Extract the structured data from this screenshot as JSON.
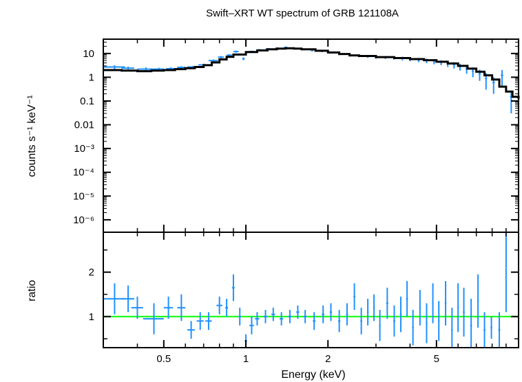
{
  "chart_data": {
    "type": "scatter",
    "title": "Swift–XRT WT spectrum of GRB 121108A",
    "xlabel": "Energy (keV)",
    "xscale": "log",
    "xlim": [
      0.3,
      10
    ],
    "xticks": [
      "0.5",
      "1",
      "2",
      "5"
    ],
    "colors": {
      "data": "#1e90ff",
      "model": "#000000",
      "ratio_line": "#00ff00"
    },
    "panels": [
      {
        "name": "spectrum",
        "ylabel": "counts s⁻¹ keV⁻¹",
        "yscale": "log",
        "ylim": [
          3e-07,
          40
        ],
        "yticks": [
          "10",
          "1",
          "0.1",
          "0.01",
          "10⁻³",
          "10⁻⁴",
          "10⁻⁵",
          "10⁻⁶"
        ],
        "series": [
          {
            "type": "errorbar",
            "points": [
              [
                0.33,
                2.7,
                0.03,
                0.5
              ],
              [
                0.37,
                2.4,
                0.02,
                0.4
              ],
              [
                0.43,
                2.2,
                0.03,
                0.4
              ],
              [
                0.48,
                2.2,
                0.02,
                0.3
              ],
              [
                0.53,
                2.3,
                0.02,
                0.3
              ],
              [
                0.58,
                2.6,
                0.02,
                0.3
              ],
              [
                0.64,
                2.7,
                0.03,
                0.3
              ],
              [
                0.7,
                3.3,
                0.03,
                0.4
              ],
              [
                0.76,
                5.0,
                0.03,
                0.6
              ],
              [
                0.81,
                7.0,
                0.02,
                0.8
              ],
              [
                0.87,
                8.5,
                0.02,
                0.9
              ],
              [
                0.92,
                12.0,
                0.02,
                1.2
              ],
              [
                0.98,
                6.0,
                0.01,
                0.8
              ],
              [
                1.05,
                12.0,
                0.02,
                1.2
              ],
              [
                1.12,
                14.0,
                0.02,
                1.3
              ],
              [
                1.2,
                15.5,
                0.02,
                1.4
              ],
              [
                1.3,
                16.5,
                0.02,
                1.5
              ],
              [
                1.4,
                18.0,
                0.02,
                1.6
              ],
              [
                1.5,
                16.5,
                0.02,
                1.5
              ],
              [
                1.62,
                15.0,
                0.02,
                1.4
              ],
              [
                1.75,
                13.5,
                0.02,
                1.3
              ],
              [
                1.9,
                12.5,
                0.02,
                1.2
              ],
              [
                2.05,
                11.0,
                0.02,
                1.1
              ],
              [
                2.2,
                9.5,
                0.02,
                1.0
              ],
              [
                2.4,
                8.5,
                0.02,
                1.0
              ],
              [
                2.6,
                8.0,
                0.03,
                1.0
              ],
              [
                2.8,
                7.5,
                0.03,
                1.0
              ],
              [
                3.0,
                7.0,
                0.03,
                1.0
              ],
              [
                3.25,
                6.8,
                0.03,
                1.0
              ],
              [
                3.5,
                6.5,
                0.03,
                1.0
              ],
              [
                3.75,
                6.2,
                0.03,
                1.1
              ],
              [
                4.0,
                5.8,
                0.03,
                1.1
              ],
              [
                4.3,
                5.4,
                0.04,
                1.1
              ],
              [
                4.6,
                5.0,
                0.04,
                1.1
              ],
              [
                4.9,
                4.6,
                0.04,
                1.1
              ],
              [
                5.2,
                4.2,
                0.04,
                1.0
              ],
              [
                5.5,
                3.7,
                0.05,
                1.0
              ],
              [
                5.8,
                3.3,
                0.05,
                1.0
              ],
              [
                6.1,
                2.8,
                0.05,
                0.9
              ],
              [
                6.45,
                2.3,
                0.06,
                0.9
              ],
              [
                6.8,
                1.8,
                0.06,
                0.8
              ],
              [
                7.2,
                1.4,
                0.07,
                0.7
              ],
              [
                7.6,
                0.9,
                0.07,
                0.6
              ],
              [
                8.1,
                0.6,
                0.08,
                0.4
              ],
              [
                8.7,
                1.2,
                0.09,
                0.8
              ],
              [
                9.4,
                0.15,
                0.1,
                0.12
              ]
            ]
          },
          {
            "type": "model-step",
            "points": [
              [
                0.3,
                2.0
              ],
              [
                0.35,
                1.9
              ],
              [
                0.4,
                1.8
              ],
              [
                0.45,
                1.9
              ],
              [
                0.5,
                2.0
              ],
              [
                0.55,
                2.2
              ],
              [
                0.6,
                2.4
              ],
              [
                0.65,
                2.7
              ],
              [
                0.7,
                3.2
              ],
              [
                0.75,
                4.2
              ],
              [
                0.8,
                5.6
              ],
              [
                0.85,
                7.2
              ],
              [
                0.9,
                9.0
              ],
              [
                1.0,
                11.5
              ],
              [
                1.1,
                13.5
              ],
              [
                1.2,
                15.0
              ],
              [
                1.3,
                16.0
              ],
              [
                1.4,
                16.5
              ],
              [
                1.5,
                16.0
              ],
              [
                1.6,
                15.0
              ],
              [
                1.8,
                13.0
              ],
              [
                2.0,
                11.0
              ],
              [
                2.2,
                9.5
              ],
              [
                2.4,
                8.3
              ],
              [
                2.6,
                7.8
              ],
              [
                3.0,
                7.0
              ],
              [
                3.5,
                6.4
              ],
              [
                4.0,
                5.8
              ],
              [
                4.5,
                5.2
              ],
              [
                5.0,
                4.5
              ],
              [
                5.5,
                3.8
              ],
              [
                6.0,
                3.0
              ],
              [
                6.5,
                2.3
              ],
              [
                7.0,
                1.7
              ],
              [
                7.5,
                1.2
              ],
              [
                8.0,
                0.8
              ],
              [
                8.5,
                0.4
              ],
              [
                9.0,
                0.25
              ],
              [
                9.5,
                0.15
              ],
              [
                10.0,
                0.12
              ]
            ]
          }
        ]
      },
      {
        "name": "ratio",
        "ylabel": "ratio",
        "ylim": [
          0.3,
          2.9
        ],
        "yticks": [
          "1",
          "2"
        ],
        "reference_line": 1,
        "series": [
          {
            "type": "errorbar",
            "points": [
              [
                0.33,
                1.4,
                0.03,
                0.35
              ],
              [
                0.37,
                1.4,
                0.02,
                0.3
              ],
              [
                0.4,
                1.2,
                0.02,
                0.25
              ],
              [
                0.46,
                0.95,
                0.04,
                0.35
              ],
              [
                0.52,
                1.2,
                0.02,
                0.25
              ],
              [
                0.58,
                1.2,
                0.02,
                0.3
              ],
              [
                0.63,
                0.7,
                0.02,
                0.2
              ],
              [
                0.68,
                0.9,
                0.02,
                0.2
              ],
              [
                0.73,
                0.9,
                0.02,
                0.2
              ],
              [
                0.8,
                1.25,
                0.02,
                0.2
              ],
              [
                0.85,
                1.2,
                0.01,
                0.2
              ],
              [
                0.9,
                1.65,
                0.01,
                0.3
              ],
              [
                0.95,
                1.0,
                0.01,
                0.2
              ],
              [
                1.0,
                0.45,
                0.01,
                0.15
              ],
              [
                1.05,
                0.8,
                0.02,
                0.2
              ],
              [
                1.1,
                0.95,
                0.02,
                0.15
              ],
              [
                1.18,
                1.0,
                0.02,
                0.15
              ],
              [
                1.26,
                1.05,
                0.02,
                0.15
              ],
              [
                1.35,
                0.95,
                0.02,
                0.15
              ],
              [
                1.45,
                1.0,
                0.02,
                0.15
              ],
              [
                1.55,
                1.1,
                0.02,
                0.15
              ],
              [
                1.65,
                1.0,
                0.02,
                0.15
              ],
              [
                1.78,
                0.9,
                0.02,
                0.2
              ],
              [
                1.92,
                1.05,
                0.02,
                0.2
              ],
              [
                2.05,
                1.1,
                0.02,
                0.2
              ],
              [
                2.2,
                0.9,
                0.02,
                0.25
              ],
              [
                2.35,
                1.05,
                0.02,
                0.25
              ],
              [
                2.5,
                1.45,
                0.02,
                0.3
              ],
              [
                2.65,
                0.9,
                0.02,
                0.3
              ],
              [
                2.8,
                1.1,
                0.02,
                0.3
              ],
              [
                2.95,
                1.2,
                0.02,
                0.3
              ],
              [
                3.1,
                0.8,
                0.02,
                0.35
              ],
              [
                3.3,
                1.3,
                0.03,
                0.35
              ],
              [
                3.5,
                0.9,
                0.03,
                0.35
              ],
              [
                3.7,
                1.05,
                0.03,
                0.4
              ],
              [
                3.9,
                1.4,
                0.03,
                0.4
              ],
              [
                4.1,
                0.75,
                0.03,
                0.4
              ],
              [
                4.35,
                1.2,
                0.03,
                0.4
              ],
              [
                4.6,
                0.85,
                0.03,
                0.45
              ],
              [
                4.85,
                1.3,
                0.03,
                0.45
              ],
              [
                5.1,
                0.9,
                0.03,
                0.45
              ],
              [
                5.4,
                1.3,
                0.04,
                0.5
              ],
              [
                5.7,
                0.7,
                0.04,
                0.5
              ],
              [
                6.0,
                1.2,
                0.04,
                0.55
              ],
              [
                6.3,
                1.1,
                0.05,
                0.55
              ],
              [
                6.7,
                0.8,
                0.05,
                0.6
              ],
              [
                7.1,
                1.35,
                0.05,
                0.6
              ],
              [
                7.5,
                0.7,
                0.06,
                0.4
              ],
              [
                7.95,
                0.75,
                0.06,
                0.25
              ],
              [
                8.5,
                0.7,
                0.07,
                0.4
              ],
              [
                9.0,
                2.0,
                0.05,
                0.9
              ]
            ]
          }
        ]
      }
    ]
  }
}
